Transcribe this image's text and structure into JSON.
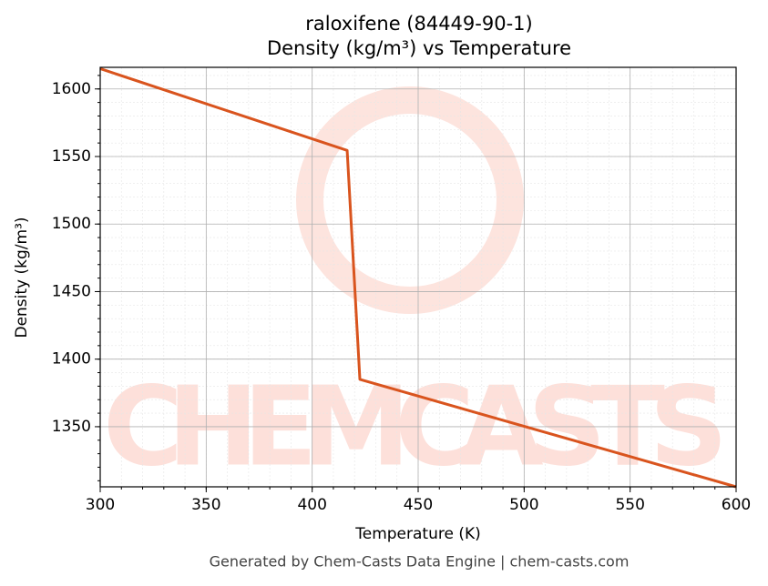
{
  "chart_data": {
    "type": "line",
    "title": "raloxifene (84449-90-1)",
    "subtitle": "Density (kg/m³) vs Temperature",
    "x_label": "Temperature (K)",
    "y_label": "Density (kg/m³)",
    "footer": "Generated by Chem-Casts Data Engine | chem-casts.com",
    "watermark": "CHEMCASTS",
    "x": [
      300,
      416.5,
      422.5,
      600
    ],
    "series": [
      {
        "name": "Density",
        "color": "#d9541e",
        "values": [
          1615,
          1554.5,
          1385,
          1305.5
        ]
      }
    ],
    "xlim": [
      300,
      600
    ],
    "ylim": [
      1305.5,
      1616
    ],
    "xticks": [
      300,
      350,
      400,
      450,
      500,
      550,
      600
    ],
    "yticks": [
      1350,
      1400,
      1450,
      1500,
      1550,
      1600
    ],
    "grid": true
  }
}
